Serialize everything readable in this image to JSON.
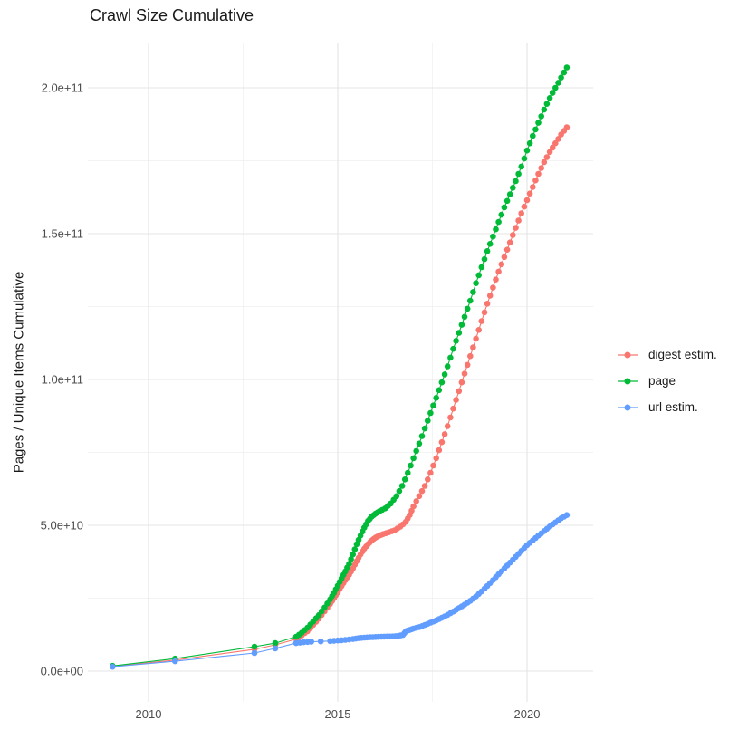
{
  "chart_data": {
    "type": "line",
    "title": "Crawl Size Cumulative",
    "xlabel": "",
    "ylabel": "Pages / Unique Items Cumulative",
    "legend_position": "right",
    "grid": {
      "major": true,
      "minor": true
    },
    "x_domain": [
      2008.4,
      2021.74
    ],
    "y_domain": [
      -10200000000.0,
      215200000000.0
    ],
    "x_ticks": [
      {
        "value": 2010,
        "label": "2010"
      },
      {
        "value": 2015,
        "label": "2015"
      },
      {
        "value": 2020,
        "label": "2020"
      }
    ],
    "y_ticks": [
      {
        "value": 0,
        "label": "0.0e+00"
      },
      {
        "value": 50000000000.0,
        "label": "5.0e+10"
      },
      {
        "value": 100000000000.0,
        "label": "1.0e+11"
      },
      {
        "value": 150000000000.0,
        "label": "1.5e+11"
      },
      {
        "value": 200000000000.0,
        "label": "2.0e+11"
      }
    ],
    "series": [
      {
        "name": "digest estim.",
        "color": "#F8766D",
        "points": [
          [
            2009.05,
            1600000000.0
          ],
          [
            2010.7,
            3800000000.0
          ],
          [
            2012.8,
            7500000000.0
          ],
          [
            2013.35,
            9000000000.0
          ],
          [
            2013.9,
            11000000000.0
          ],
          [
            2014.05,
            12300000000.0
          ],
          [
            2014.2,
            13700000000.0
          ],
          [
            2014.35,
            15800000000.0
          ],
          [
            2014.5,
            18000000000.0
          ],
          [
            2014.65,
            20500000000.0
          ],
          [
            2014.8,
            23000000000.0
          ],
          [
            2014.9,
            25000000000.0
          ],
          [
            2015.0,
            27000000000.0
          ],
          [
            2015.1,
            29200000000.0
          ],
          [
            2015.2,
            31200000000.0
          ],
          [
            2015.3,
            33000000000.0
          ],
          [
            2015.4,
            35200000000.0
          ],
          [
            2015.5,
            37700000000.0
          ],
          [
            2015.6,
            40000000000.0
          ],
          [
            2015.7,
            42000000000.0
          ],
          [
            2015.8,
            43500000000.0
          ],
          [
            2015.9,
            44800000000.0
          ],
          [
            2016.0,
            45800000000.0
          ],
          [
            2016.1,
            46500000000.0
          ],
          [
            2016.2,
            47000000000.0
          ],
          [
            2016.35,
            47600000000.0
          ],
          [
            2016.5,
            48300000000.0
          ],
          [
            2016.65,
            49500000000.0
          ],
          [
            2016.8,
            51200000000.0
          ],
          [
            2016.9,
            53500000000.0
          ],
          [
            2017.0,
            56500000000.0
          ],
          [
            2017.15,
            60000000000.0
          ],
          [
            2017.3,
            63500000000.0
          ],
          [
            2017.45,
            68000000000.0
          ],
          [
            2017.6,
            73000000000.0
          ],
          [
            2017.75,
            78500000000.0
          ],
          [
            2017.9,
            84000000000.0
          ],
          [
            2018.05,
            90000000000.0
          ],
          [
            2018.2,
            96000000000.0
          ],
          [
            2018.35,
            102000000000.0
          ],
          [
            2018.5,
            108000000000.0
          ],
          [
            2018.65,
            114000000000.0
          ],
          [
            2018.8,
            120000000000.0
          ],
          [
            2018.95,
            126000000000.0
          ],
          [
            2019.1,
            131500000000.0
          ],
          [
            2019.25,
            137000000000.0
          ],
          [
            2019.4,
            142000000000.0
          ],
          [
            2019.55,
            147000000000.0
          ],
          [
            2019.7,
            152000000000.0
          ],
          [
            2019.85,
            157000000000.0
          ],
          [
            2020.0,
            161500000000.0
          ],
          [
            2020.15,
            166000000000.0
          ],
          [
            2020.3,
            170500000000.0
          ],
          [
            2020.45,
            174500000000.0
          ],
          [
            2020.6,
            178000000000.0
          ],
          [
            2020.75,
            181000000000.0
          ],
          [
            2020.9,
            184000000000.0
          ],
          [
            2021.05,
            186500000000.0
          ]
        ]
      },
      {
        "name": "page",
        "color": "#00BA38",
        "points": [
          [
            2009.05,
            1800000000.0
          ],
          [
            2010.7,
            4300000000.0
          ],
          [
            2012.8,
            8400000000.0
          ],
          [
            2013.35,
            9600000000.0
          ],
          [
            2013.9,
            11800000000.0
          ],
          [
            2014.05,
            13200000000.0
          ],
          [
            2014.2,
            14900000000.0
          ],
          [
            2014.35,
            17000000000.0
          ],
          [
            2014.5,
            19200000000.0
          ],
          [
            2014.65,
            21800000000.0
          ],
          [
            2014.8,
            24600000000.0
          ],
          [
            2014.9,
            26800000000.0
          ],
          [
            2015.0,
            29300000000.0
          ],
          [
            2015.1,
            31800000000.0
          ],
          [
            2015.2,
            34200000000.0
          ],
          [
            2015.3,
            36800000000.0
          ],
          [
            2015.4,
            40000000000.0
          ],
          [
            2015.5,
            43500000000.0
          ],
          [
            2015.6,
            46500000000.0
          ],
          [
            2015.7,
            49200000000.0
          ],
          [
            2015.8,
            51500000000.0
          ],
          [
            2015.9,
            53000000000.0
          ],
          [
            2016.0,
            54000000000.0
          ],
          [
            2016.1,
            54800000000.0
          ],
          [
            2016.25,
            55800000000.0
          ],
          [
            2016.4,
            57500000000.0
          ],
          [
            2016.55,
            60000000000.0
          ],
          [
            2016.7,
            63500000000.0
          ],
          [
            2016.85,
            68000000000.0
          ],
          [
            2017.0,
            73000000000.0
          ],
          [
            2017.15,
            78000000000.0
          ],
          [
            2017.3,
            83200000000.0
          ],
          [
            2017.45,
            88500000000.0
          ],
          [
            2017.6,
            93700000000.0
          ],
          [
            2017.75,
            99000000000.0
          ],
          [
            2017.9,
            104500000000.0
          ],
          [
            2018.05,
            110500000000.0
          ],
          [
            2018.2,
            116000000000.0
          ],
          [
            2018.35,
            121500000000.0
          ],
          [
            2018.5,
            127000000000.0
          ],
          [
            2018.65,
            133000000000.0
          ],
          [
            2018.8,
            138500000000.0
          ],
          [
            2018.95,
            144000000000.0
          ],
          [
            2019.1,
            149000000000.0
          ],
          [
            2019.25,
            154000000000.0
          ],
          [
            2019.4,
            159000000000.0
          ],
          [
            2019.55,
            163500000000.0
          ],
          [
            2019.7,
            168000000000.0
          ],
          [
            2019.85,
            173000000000.0
          ],
          [
            2020.0,
            178500000000.0
          ],
          [
            2020.15,
            183500000000.0
          ],
          [
            2020.3,
            188000000000.0
          ],
          [
            2020.45,
            192500000000.0
          ],
          [
            2020.6,
            196500000000.0
          ],
          [
            2020.75,
            200000000000.0
          ],
          [
            2020.9,
            203500000000.0
          ],
          [
            2021.05,
            207000000000.0
          ]
        ]
      },
      {
        "name": "url estim.",
        "color": "#619CFF",
        "points": [
          [
            2009.05,
            1500000000.0
          ],
          [
            2010.7,
            3400000000.0
          ],
          [
            2012.8,
            6200000000.0
          ],
          [
            2013.35,
            7800000000.0
          ],
          [
            2013.9,
            9600000000.0
          ],
          [
            2014.1,
            9900000000.0
          ],
          [
            2014.3,
            10100000000.0
          ],
          [
            2014.55,
            10200000000.0
          ],
          [
            2014.8,
            10300000000.0
          ],
          [
            2015.0,
            10500000000.0
          ],
          [
            2015.2,
            10700000000.0
          ],
          [
            2015.4,
            11000000000.0
          ],
          [
            2015.55,
            11300000000.0
          ],
          [
            2015.7,
            11500000000.0
          ],
          [
            2015.85,
            11600000000.0
          ],
          [
            2016.0,
            11700000000.0
          ],
          [
            2016.15,
            11800000000.0
          ],
          [
            2016.3,
            11850000000.0
          ],
          [
            2016.45,
            11900000000.0
          ],
          [
            2016.6,
            12100000000.0
          ],
          [
            2016.72,
            12400000000.0
          ],
          [
            2016.8,
            13700000000.0
          ],
          [
            2016.9,
            14100000000.0
          ],
          [
            2017.0,
            14600000000.0
          ],
          [
            2017.15,
            15100000000.0
          ],
          [
            2017.3,
            15800000000.0
          ],
          [
            2017.45,
            16600000000.0
          ],
          [
            2017.6,
            17400000000.0
          ],
          [
            2017.75,
            18300000000.0
          ],
          [
            2017.9,
            19300000000.0
          ],
          [
            2018.05,
            20400000000.0
          ],
          [
            2018.2,
            21600000000.0
          ],
          [
            2018.35,
            22800000000.0
          ],
          [
            2018.5,
            24100000000.0
          ],
          [
            2018.65,
            25600000000.0
          ],
          [
            2018.8,
            27300000000.0
          ],
          [
            2018.95,
            29200000000.0
          ],
          [
            2019.1,
            31200000000.0
          ],
          [
            2019.25,
            33200000000.0
          ],
          [
            2019.4,
            35200000000.0
          ],
          [
            2019.55,
            37200000000.0
          ],
          [
            2019.7,
            39200000000.0
          ],
          [
            2019.85,
            41200000000.0
          ],
          [
            2020.0,
            43200000000.0
          ],
          [
            2020.15,
            44800000000.0
          ],
          [
            2020.3,
            46500000000.0
          ],
          [
            2020.45,
            48000000000.0
          ],
          [
            2020.6,
            49600000000.0
          ],
          [
            2020.75,
            51000000000.0
          ],
          [
            2020.9,
            52400000000.0
          ],
          [
            2021.05,
            53500000000.0
          ]
        ]
      }
    ]
  }
}
